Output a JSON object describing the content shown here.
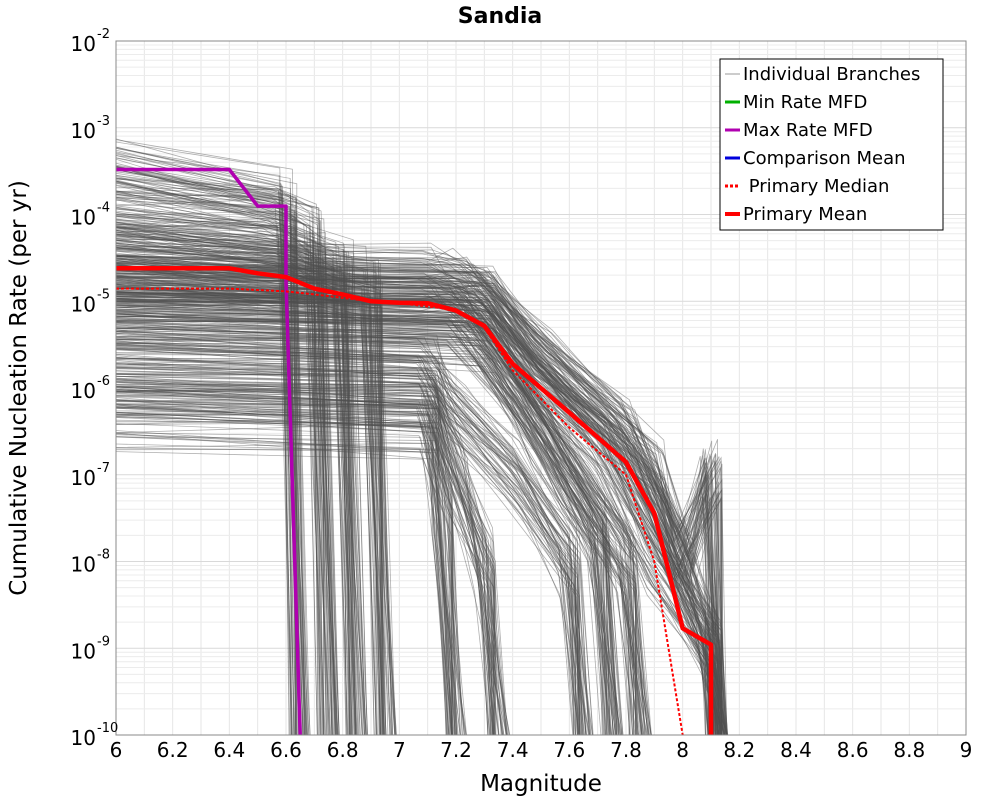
{
  "chart_data": {
    "type": "line",
    "title": "Sandia",
    "xlabel": "Magnitude",
    "ylabel": "Cumulative Nucleation Rate (per yr)",
    "xlim": [
      6,
      9
    ],
    "ylim": [
      1e-10,
      0.01
    ],
    "yscale": "log",
    "grid": true,
    "legend_position": "top-right",
    "x_ticks": [
      "6",
      "6.2",
      "6.4",
      "6.6",
      "6.8",
      "7",
      "7.2",
      "7.4",
      "7.6",
      "7.8",
      "8",
      "8.2",
      "8.4",
      "8.6",
      "8.8",
      "9"
    ],
    "y_ticks": [
      {
        "base": "10",
        "exp": "-2",
        "value": 0.01
      },
      {
        "base": "10",
        "exp": "-3",
        "value": 0.001
      },
      {
        "base": "10",
        "exp": "-4",
        "value": 0.0001
      },
      {
        "base": "10",
        "exp": "-5",
        "value": 1e-05
      },
      {
        "base": "10",
        "exp": "-6",
        "value": 1e-06
      },
      {
        "base": "10",
        "exp": "-7",
        "value": 1e-07
      },
      {
        "base": "10",
        "exp": "-8",
        "value": 1e-08
      },
      {
        "base": "10",
        "exp": "-9",
        "value": 1e-09
      },
      {
        "base": "10",
        "exp": "-10",
        "value": 1e-10
      }
    ],
    "series": [
      {
        "name": "Individual Branches",
        "color": "#505050",
        "style": "thin",
        "representative_curves": [
          {
            "x": [
              6,
              6.6,
              6.65
            ],
            "y": [
              0.0003,
              0.00012,
              1e-10
            ]
          },
          {
            "x": [
              6,
              6.55,
              6.7,
              6.75
            ],
            "y": [
              0.0001,
              8e-05,
              5e-05,
              1e-10
            ]
          },
          {
            "x": [
              6,
              6.6,
              6.8,
              6.85
            ],
            "y": [
              5e-05,
              3e-05,
              2e-05,
              1e-10
            ]
          },
          {
            "x": [
              6,
              6.6,
              6.9,
              6.95
            ],
            "y": [
              3e-05,
              2e-05,
              1.5e-05,
              1e-10
            ]
          },
          {
            "x": [
              6,
              7.1,
              7.2,
              7.3,
              7.5,
              7.8,
              8.0,
              8.1,
              8.12
            ],
            "y": [
              2e-05,
              1.8e-05,
              1.5e-05,
              1e-05,
              2e-06,
              3e-07,
              1e-08,
              1e-09,
              1e-10
            ]
          },
          {
            "x": [
              6,
              7.2,
              7.3,
              7.5,
              7.7,
              7.9,
              8.1,
              8.12
            ],
            "y": [
              1.2e-05,
              1e-05,
              8e-06,
              1e-06,
              2e-07,
              1e-08,
              1e-09,
              1e-10
            ]
          },
          {
            "x": [
              6,
              7.2,
              7.4,
              7.6,
              7.8,
              7.85
            ],
            "y": [
              8e-06,
              7e-06,
              1e-06,
              1e-07,
              1e-08,
              1e-10
            ]
          },
          {
            "x": [
              6,
              7.3,
              7.5,
              7.7,
              7.75
            ],
            "y": [
              6e-06,
              4e-06,
              3e-07,
              2e-08,
              1e-10
            ]
          },
          {
            "x": [
              6,
              7.1,
              7.2,
              7.4,
              7.6,
              7.65
            ],
            "y": [
              2e-06,
              1.5e-06,
              5e-07,
              1e-07,
              1e-08,
              1e-10
            ]
          },
          {
            "x": [
              6,
              7.1,
              7.2,
              7.3,
              7.35
            ],
            "y": [
              1e-06,
              8e-07,
              1e-07,
              1e-08,
              1e-10
            ]
          },
          {
            "x": [
              6,
              7.1,
              7.15,
              7.2
            ],
            "y": [
              5e-07,
              4e-07,
              5e-08,
              1e-10
            ]
          },
          {
            "x": [
              6,
              7.3,
              7.5,
              7.7,
              7.9,
              8.0,
              8.1,
              8.12
            ],
            "y": [
              1.5e-05,
              1.2e-05,
              2e-06,
              5e-07,
              1e-07,
              1e-08,
              1e-07,
              1e-10
            ]
          }
        ]
      },
      {
        "name": "Min Rate MFD",
        "color": "#00b000",
        "x": [],
        "y": []
      },
      {
        "name": "Max Rate MFD",
        "color": "#b000b0",
        "x": [
          6.0,
          6.4,
          6.5,
          6.6,
          6.6,
          6.65
        ],
        "y": [
          0.00033,
          0.00033,
          0.000125,
          0.000125,
          1.7e-05,
          1e-10
        ]
      },
      {
        "name": "Comparison Mean",
        "color": "#0000dd",
        "x": [
          7.6,
          7.8,
          7.9,
          8.0,
          8.1
        ],
        "y": [
          5.2e-07,
          1.4e-07,
          3.6e-08,
          1.7e-09,
          1.1e-09
        ]
      },
      {
        "name": "Primary Median",
        "color": "#ff0000",
        "style": "dotted",
        "x": [
          6.0,
          6.4,
          6.6,
          6.7,
          6.9,
          7.0,
          7.2,
          7.3,
          7.4,
          7.6,
          7.8,
          7.9,
          7.95,
          8.0
        ],
        "y": [
          1.4e-05,
          1.4e-05,
          1.3e-05,
          1.2e-05,
          1e-05,
          9.5e-06,
          8e-06,
          5e-06,
          1.6e-06,
          3.5e-07,
          1e-07,
          1e-08,
          1e-09,
          1e-10
        ]
      },
      {
        "name": "Primary Mean",
        "color": "#ff0000",
        "x": [
          6.0,
          6.4,
          6.5,
          6.6,
          6.7,
          6.8,
          6.9,
          7.0,
          7.1,
          7.2,
          7.3,
          7.4,
          7.6,
          7.8,
          7.9,
          8.0,
          8.1,
          8.1
        ],
        "y": [
          2.4e-05,
          2.4e-05,
          2.1e-05,
          1.9e-05,
          1.4e-05,
          1.2e-05,
          1e-05,
          9.6e-06,
          9.5e-06,
          7.8e-06,
          5.2e-06,
          1.9e-06,
          5.2e-07,
          1.4e-07,
          3.6e-08,
          1.7e-09,
          1.1e-09,
          1e-10
        ]
      }
    ]
  }
}
